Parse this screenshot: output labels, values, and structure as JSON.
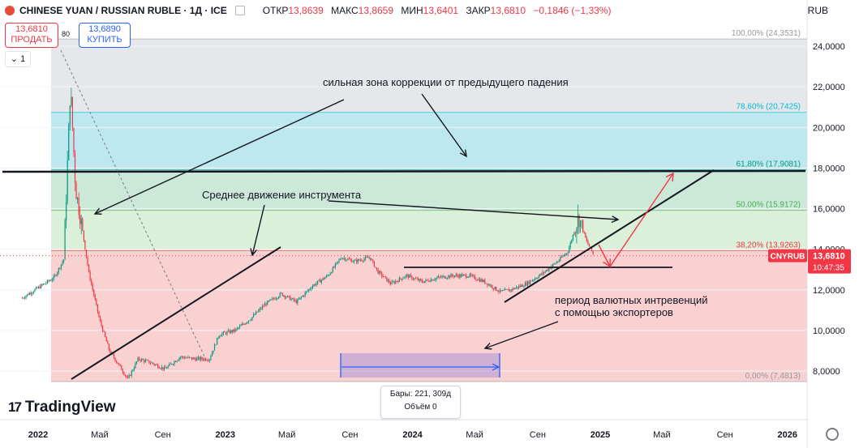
{
  "header": {
    "symbol": "CHINESE YUAN / RUSSIAN RUBLE · 1Д · ICE",
    "open_label": "ОТКР",
    "open": "13,8639",
    "high_label": "МАКС",
    "high": "13,8659",
    "low_label": "МИН",
    "low": "13,6401",
    "close_label": "ЗАКР",
    "close": "13,6810",
    "change": "−0,1846 (−1,33%)",
    "currency": "RUB"
  },
  "trade": {
    "sell_price": "13,6810",
    "sell_label": "ПРОДАТЬ",
    "spread": "80",
    "buy_price": "13,6890",
    "buy_label": "КУПИТЬ",
    "interval": "1"
  },
  "tooltip": {
    "bars": "Бары: 221, 309д",
    "volume": "Объём 0"
  },
  "brand": {
    "name": "TradingView"
  },
  "colors": {
    "up": "#089981",
    "down": "#f23645",
    "fib_100_78": "#e6e7ea",
    "fib_78_61": "#bde8ef",
    "fib_61_50": "#cbe8d8",
    "fib_50_38": "#daf0d8",
    "fib_38_0": "#fad1d1"
  },
  "chart_data": {
    "type": "candlestick",
    "title": "CHINESE YUAN / RUSSIAN RUBLE",
    "y_unit": "RUB",
    "ylim": [
      7.5,
      25.2
    ],
    "y_ticks": [
      "24,0000",
      "22,0000",
      "20,0000",
      "18,0000",
      "16,0000",
      "14,0000",
      "12,0000",
      "10,0000",
      "8,0000"
    ],
    "y_tick_values": [
      24,
      22,
      20,
      18,
      16,
      14,
      12,
      10,
      8
    ],
    "x_ticks": [
      "2022",
      "Май",
      "Сен",
      "2023",
      "Май",
      "Сен",
      "2024",
      "Май",
      "Сен",
      "2025",
      "Май",
      "Сен",
      "2026"
    ],
    "x_tick_dates": [
      "2022-01",
      "2022-05",
      "2022-09",
      "2023-01",
      "2023-05",
      "2023-09",
      "2024-01",
      "2024-05",
      "2024-09",
      "2025-01",
      "2025-05",
      "2025-09",
      "2026-01"
    ],
    "last_price": {
      "symbol": "CNYRUB",
      "price": "13,6810",
      "time": "10:47:35",
      "value": 13.681
    },
    "fib_levels": [
      {
        "ratio": 1.0,
        "label": "100,00% (24,3531)",
        "value": 24.3531
      },
      {
        "ratio": 0.786,
        "label": "78,60% (20,7425)",
        "value": 20.7425
      },
      {
        "ratio": 0.618,
        "label": "61,80% (17,9081)",
        "value": 17.9081
      },
      {
        "ratio": 0.5,
        "label": "50,00% (15,9172)",
        "value": 15.9172
      },
      {
        "ratio": 0.382,
        "label": "38,20% (13,9263)",
        "value": 13.9263
      },
      {
        "ratio": 0.0,
        "label": "0,00% (7,4813)",
        "value": 7.4813
      }
    ],
    "price_path": [
      [
        "2021-12",
        11.6
      ],
      [
        "2022-01",
        12.1
      ],
      [
        "2022-02",
        12.6
      ],
      [
        "2022-02-20",
        13.5
      ],
      [
        "2022-03-05",
        22.0
      ],
      [
        "2022-03-15",
        17.0
      ],
      [
        "2022-03-25",
        15.5
      ],
      [
        "2022-04-10",
        12.8
      ],
      [
        "2022-05-01",
        10.5
      ],
      [
        "2022-05-20",
        9.0
      ],
      [
        "2022-06-10",
        8.2
      ],
      [
        "2022-06-25",
        7.6
      ],
      [
        "2022-07-15",
        8.6
      ],
      [
        "2022-08-10",
        8.4
      ],
      [
        "2022-09-05",
        8.1
      ],
      [
        "2022-10-05",
        8.7
      ],
      [
        "2022-11-01",
        8.6
      ],
      [
        "2022-12-01",
        8.6
      ],
      [
        "2022-12-20",
        9.8
      ],
      [
        "2023-01-20",
        10.0
      ],
      [
        "2023-02-20",
        10.6
      ],
      [
        "2023-03-20",
        11.3
      ],
      [
        "2023-04-20",
        11.8
      ],
      [
        "2023-05-20",
        11.4
      ],
      [
        "2023-06-20",
        12.2
      ],
      [
        "2023-07-20",
        12.7
      ],
      [
        "2023-08-15",
        13.6
      ],
      [
        "2023-09-10",
        13.4
      ],
      [
        "2023-10-10",
        13.6
      ],
      [
        "2023-10-25",
        12.9
      ],
      [
        "2023-11-20",
        12.3
      ],
      [
        "2023-12-20",
        12.7
      ],
      [
        "2024-01-20",
        12.4
      ],
      [
        "2024-02-20",
        12.6
      ],
      [
        "2024-03-20",
        12.7
      ],
      [
        "2024-04-20",
        12.7
      ],
      [
        "2024-05-20",
        12.4
      ],
      [
        "2024-06-20",
        11.9
      ],
      [
        "2024-07-10",
        12.0
      ],
      [
        "2024-08-10",
        12.3
      ],
      [
        "2024-09-10",
        12.8
      ],
      [
        "2024-10-10",
        13.4
      ],
      [
        "2024-10-30",
        13.9
      ],
      [
        "2024-11-20",
        15.6
      ],
      [
        "2024-12-05",
        14.4
      ],
      [
        "2024-12-20",
        13.68
      ]
    ]
  },
  "annotations": {
    "correction_zone": "сильная зона коррекции от предыдущего падения",
    "average_move": "Среднее движение инструмента",
    "interventions_line1": "период валютных интревенций",
    "interventions_line2": "с помощью экспортеров"
  }
}
